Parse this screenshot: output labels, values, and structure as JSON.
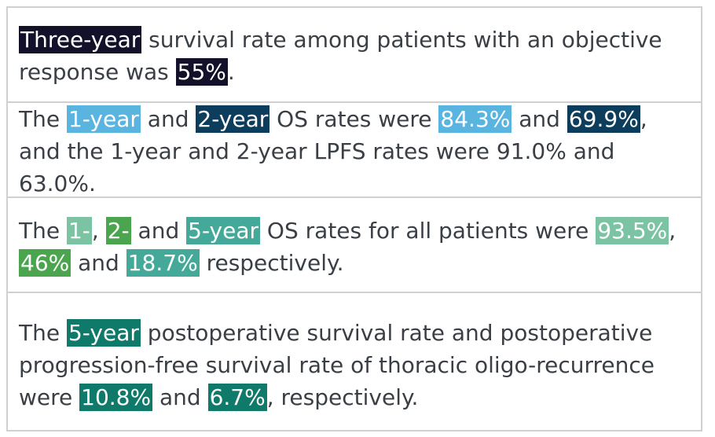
{
  "colors": {
    "text": "#3a3f45",
    "border": "#d0d0d0",
    "navy": "#13112a",
    "light_blue": "#5ab4e0",
    "dark_blue": "#0d3d5c",
    "light_teal": "#7cc3a4",
    "green": "#4ba54e",
    "mid_teal": "#45a99a",
    "dark_teal": "#0f7a6a"
  },
  "rows": [
    {
      "segments": [
        {
          "text": "Three-year",
          "highlight": "#13112a"
        },
        {
          "text": " survival rate among patients with an objective response was "
        },
        {
          "text": "55%",
          "highlight": "#13112a"
        },
        {
          "text": "."
        }
      ]
    },
    {
      "segments": [
        {
          "text": "The "
        },
        {
          "text": "1-year",
          "highlight": "#5ab4e0"
        },
        {
          "text": " and "
        },
        {
          "text": "2-year",
          "highlight": "#0d3d5c"
        },
        {
          "text": " OS rates were "
        },
        {
          "text": "84.3%",
          "highlight": "#5ab4e0"
        },
        {
          "text": " and "
        },
        {
          "text": "69.9%",
          "highlight": "#0d3d5c"
        },
        {
          "text": ", and the 1-year and 2-year LPFS rates were 91.0% and 63.0%."
        }
      ]
    },
    {
      "segments": [
        {
          "text": "The "
        },
        {
          "text": "1-",
          "highlight": "#7cc3a4"
        },
        {
          "text": ", "
        },
        {
          "text": "2-",
          "highlight": "#4ba54e"
        },
        {
          "text": " and "
        },
        {
          "text": "5-year",
          "highlight": "#45a99a"
        },
        {
          "text": " OS rates for all patients were "
        },
        {
          "text": "93.5%",
          "highlight": "#7cc3a4"
        },
        {
          "text": ", "
        },
        {
          "text": "46%",
          "highlight": "#4ba54e"
        },
        {
          "text": " and "
        },
        {
          "text": "18.7%",
          "highlight": "#45a99a"
        },
        {
          "text": " respectively."
        }
      ]
    },
    {
      "segments": [
        {
          "text": "The "
        },
        {
          "text": "5-year",
          "highlight": "#0f7a6a"
        },
        {
          "text": " postoperative survival rate and postoperative progression-free survival rate of thoracic oligo-recurrence were "
        },
        {
          "text": "10.8%",
          "highlight": "#0f7a6a"
        },
        {
          "text": " and "
        },
        {
          "text": "6.7%",
          "highlight": "#0f7a6a"
        },
        {
          "text": ", respectively."
        }
      ]
    }
  ]
}
